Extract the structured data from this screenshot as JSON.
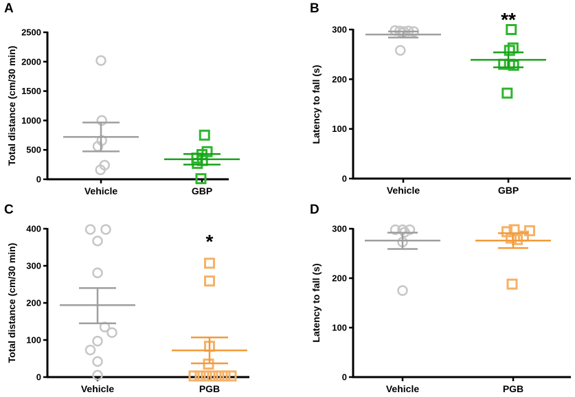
{
  "chart_data": [
    {
      "panel": "A",
      "type": "scatter",
      "ylabel": "Total distance (cm/30 min)",
      "ylim": [
        0,
        2500
      ],
      "yticks": [
        0,
        500,
        1000,
        1500,
        2000,
        2500
      ],
      "categories": [
        "Vehicle",
        "GBP"
      ],
      "series": [
        {
          "name": "Vehicle",
          "marker": "circle",
          "color": "#c6c6c6",
          "mean_color": "#9e9e9e",
          "points": [
            2020,
            1000,
            660,
            560,
            240,
            160
          ],
          "offsets": [
            0,
            0.08,
            0.08,
            -0.3,
            0.35,
            -0.05
          ],
          "mean": 720,
          "sem_low": 475,
          "sem_high": 965
        },
        {
          "name": "GBP",
          "marker": "square",
          "color": "#2db52d",
          "mean_color": "#18a018",
          "points": [
            750,
            470,
            420,
            360,
            320,
            270,
            10
          ],
          "offsets": [
            0.25,
            0.5,
            0,
            -0.5,
            0.05,
            -0.45,
            -0.1
          ],
          "mean": 340,
          "sem_low": 250,
          "sem_high": 430
        }
      ],
      "significance": ""
    },
    {
      "panel": "B",
      "type": "scatter",
      "ylabel": "Latency to fall (s)",
      "ylim": [
        0,
        300
      ],
      "yticks": [
        0,
        100,
        200,
        300
      ],
      "categories": [
        "Vehicle",
        "GBP"
      ],
      "series": [
        {
          "name": "Vehicle",
          "marker": "circle",
          "color": "#c6c6c6",
          "mean_color": "#9e9e9e",
          "points": [
            298,
            297,
            297,
            296,
            296,
            293,
            258
          ],
          "offsets": [
            -0.7,
            -0.3,
            0.45,
            0.9,
            0.05,
            -0.1,
            -0.25
          ],
          "mean": 290,
          "sem_low": 284,
          "sem_high": 296
        },
        {
          "name": "GBP",
          "marker": "square",
          "color": "#2db52d",
          "mean_color": "#18a018",
          "points": [
            300,
            263,
            258,
            230,
            230,
            228,
            172
          ],
          "offsets": [
            0.25,
            0.4,
            0.1,
            -0.4,
            0.1,
            0.45,
            -0.1
          ],
          "mean": 239,
          "sem_low": 224,
          "sem_high": 254
        }
      ],
      "significance": "**"
    },
    {
      "panel": "C",
      "type": "scatter",
      "ylabel": "Total distance (cm/30 min)",
      "ylim": [
        0,
        400
      ],
      "yticks": [
        0,
        100,
        200,
        300,
        400
      ],
      "categories": [
        "Vehicle",
        "PGB"
      ],
      "series": [
        {
          "name": "Vehicle",
          "marker": "circle",
          "color": "#c6c6c6",
          "mean_color": "#9e9e9e",
          "points": [
            398,
            398,
            367,
            281,
            135,
            120,
            97,
            73,
            42,
            5
          ],
          "offsets": [
            -0.35,
            0.4,
            0,
            0,
            0.35,
            0.7,
            0,
            -0.35,
            0,
            0
          ],
          "mean": 194,
          "sem_low": 145,
          "sem_high": 240
        },
        {
          "name": "PGB",
          "marker": "square",
          "color": "#f6b165",
          "mean_color": "#f29a3a",
          "points": [
            307,
            259,
            83,
            35,
            3,
            3,
            3,
            3,
            3,
            3,
            3
          ],
          "offsets": [
            0,
            0,
            0,
            -0.05,
            -0.75,
            -0.45,
            -0.15,
            0.15,
            0.45,
            0.75,
            1.05
          ],
          "mean": 72,
          "sem_low": 37,
          "sem_high": 107
        }
      ],
      "significance": "*"
    },
    {
      "panel": "D",
      "type": "scatter",
      "ylabel": "Latency to fall (s)",
      "ylim": [
        0,
        300
      ],
      "yticks": [
        0,
        100,
        200,
        300
      ],
      "categories": [
        "Vehicle",
        "PGB"
      ],
      "series": [
        {
          "name": "Vehicle",
          "marker": "circle",
          "color": "#c6c6c6",
          "mean_color": "#9e9e9e",
          "points": [
            298,
            298,
            298,
            293,
            273,
            175
          ],
          "offsets": [
            -0.35,
            0,
            0.35,
            0.1,
            0,
            0
          ],
          "mean": 276,
          "sem_low": 259,
          "sem_high": 292
        },
        {
          "name": "PGB",
          "marker": "square",
          "color": "#f6b165",
          "mean_color": "#f29a3a",
          "points": [
            298,
            296,
            294,
            285,
            281,
            278,
            188
          ],
          "offsets": [
            0.05,
            0.8,
            -0.3,
            0.5,
            -0.1,
            0.2,
            -0.05
          ],
          "mean": 276,
          "sem_low": 261,
          "sem_high": 291
        }
      ],
      "significance": ""
    }
  ]
}
